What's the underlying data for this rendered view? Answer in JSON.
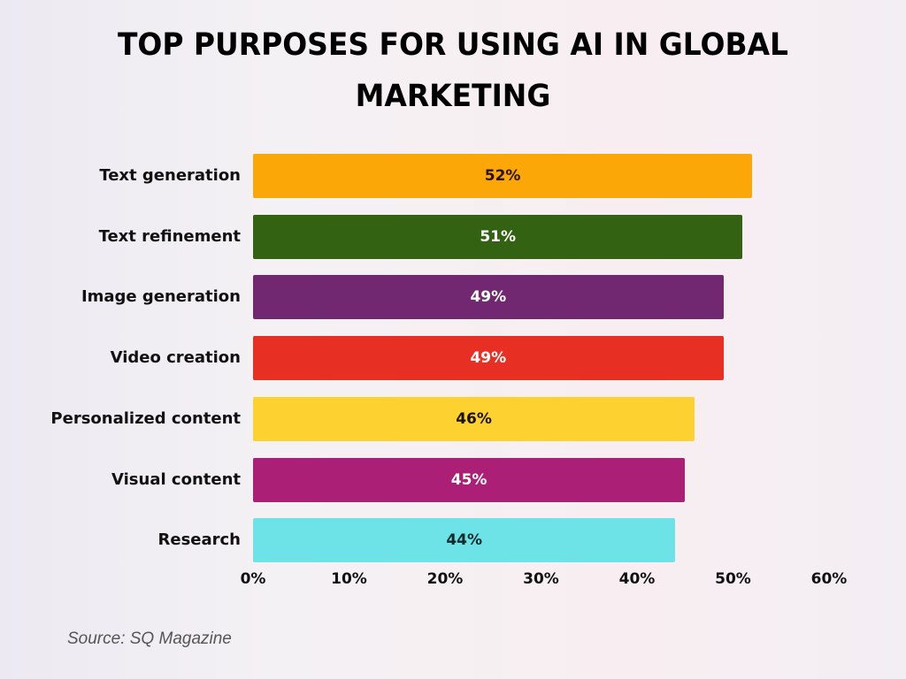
{
  "title_line1": "TOP PURPOSES FOR USING AI IN GLOBAL",
  "title_line2": "MARKETING",
  "source": "Source: SQ Magazine",
  "chart_data": {
    "type": "bar",
    "orientation": "horizontal",
    "title": "TOP PURPOSES FOR USING AI IN GLOBAL MARKETING",
    "categories": [
      "Text generation",
      "Text refinement",
      "Image generation",
      "Video creation",
      "Personalized content",
      "Visual content",
      "Research"
    ],
    "values": [
      52,
      51,
      49,
      49,
      46,
      45,
      44
    ],
    "value_labels": [
      "52%",
      "51%",
      "49%",
      "49%",
      "46%",
      "45%",
      "44%"
    ],
    "colors": [
      "#fba707",
      "#336312",
      "#722870",
      "#e82f24",
      "#fdd12f",
      "#ac1f77",
      "#6de3e8"
    ],
    "label_colors": [
      "#2a1200",
      "#ffffff",
      "#ffffff",
      "#ffffff",
      "#1a1200",
      "#ffffff",
      "#0a2a2a"
    ],
    "xlabel": "",
    "ylabel": "",
    "xlim": [
      0,
      60
    ],
    "x_ticks": [
      "0%",
      "10%",
      "20%",
      "30%",
      "40%",
      "50%",
      "60%"
    ],
    "grid": false,
    "legend": null,
    "source": "Source: SQ Magazine"
  }
}
